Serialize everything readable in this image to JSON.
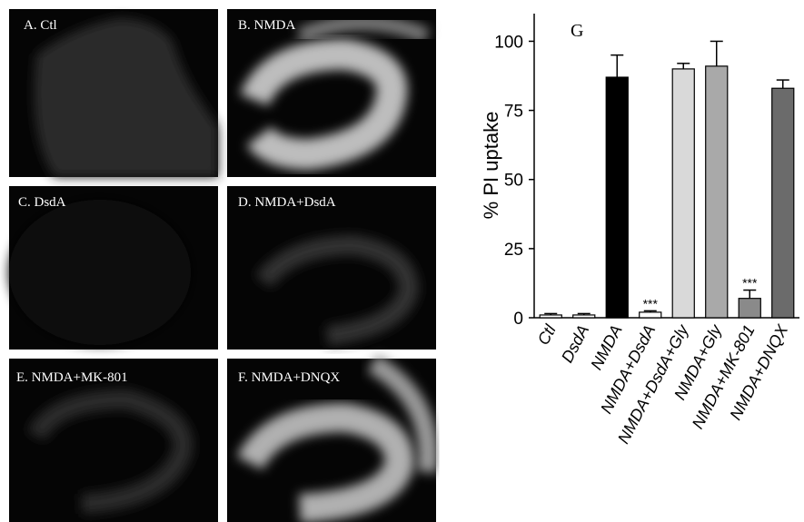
{
  "panels": [
    {
      "label": "A. Ctl"
    },
    {
      "label": "B. NMDA"
    },
    {
      "label": "C. DsdA"
    },
    {
      "label": "D. NMDA+DsdA"
    },
    {
      "label": "E. NMDA+MK-801"
    },
    {
      "label": "F. NMDA+DNQX"
    }
  ],
  "chart_data": {
    "type": "bar",
    "panel_label": "G",
    "ylabel": "% PI uptake",
    "categories": [
      "Ctl",
      "DsdA",
      "NMDA",
      "NMDA+DsdA",
      "NMDA+DsdA+Gly",
      "NMDA+Gly",
      "NMDA+MK-801",
      "NMDA+DNQX"
    ],
    "values": [
      1,
      1,
      87,
      2,
      90,
      91,
      7,
      83
    ],
    "errors": [
      0.5,
      0.5,
      8,
      0.5,
      2,
      9,
      3,
      3
    ],
    "colors": [
      "#ffffff",
      "#ffffff",
      "#000000",
      "#ffffff",
      "#d9d9d9",
      "#a9a9a9",
      "#8a8a8a",
      "#6b6b6b"
    ],
    "annotations": [
      {
        "text": "***",
        "category": "NMDA+DsdA"
      },
      {
        "text": "***",
        "category": "NMDA+MK-801"
      }
    ],
    "ylim": [
      0,
      110
    ],
    "yticks": [
      0,
      25,
      50,
      75,
      100
    ]
  }
}
